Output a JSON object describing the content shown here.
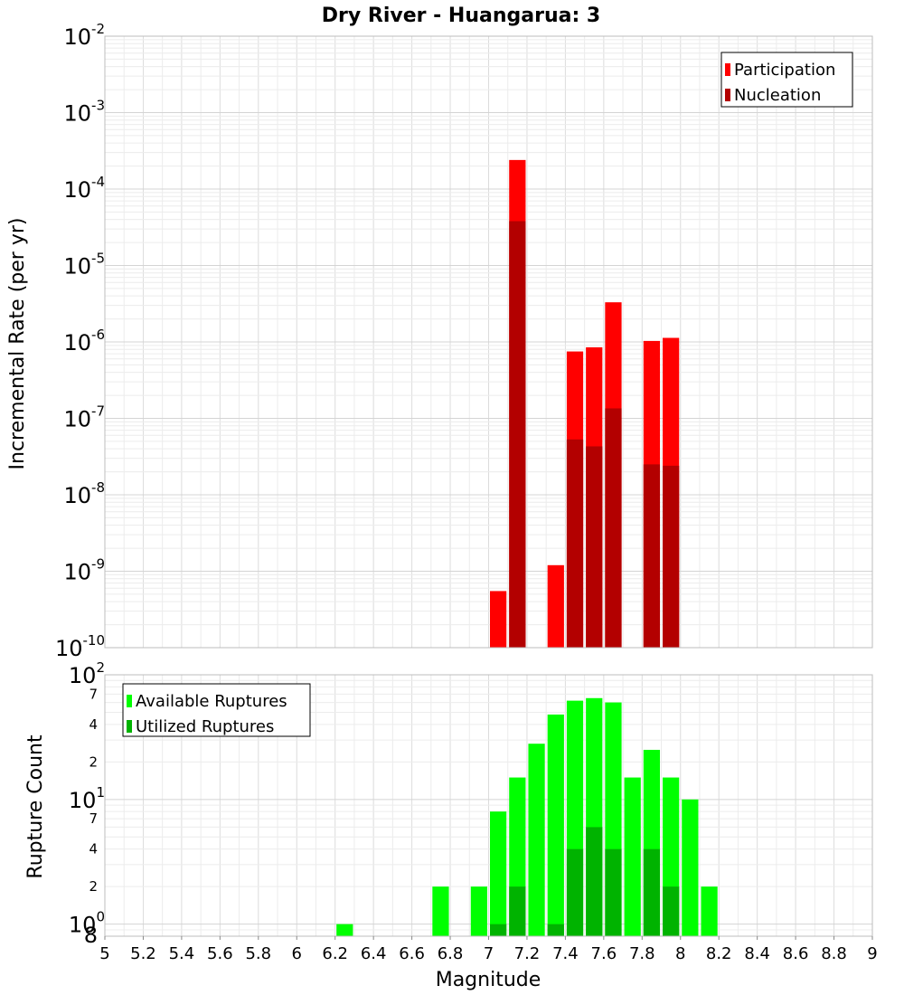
{
  "chart_data": [
    {
      "type": "bar",
      "title": "Dry River - Huangarua: 3",
      "ylabel": "Incremental Rate (per yr)",
      "yscale": "log",
      "ylim": [
        1e-10,
        0.01
      ],
      "y_ticks": [
        {
          "base": "10",
          "exp": "-10"
        },
        {
          "base": "10",
          "exp": "-9"
        },
        {
          "base": "10",
          "exp": "-8"
        },
        {
          "base": "10",
          "exp": "-7"
        },
        {
          "base": "10",
          "exp": "-6"
        },
        {
          "base": "10",
          "exp": "-5"
        },
        {
          "base": "10",
          "exp": "-4"
        },
        {
          "base": "10",
          "exp": "-3"
        },
        {
          "base": "10",
          "exp": "-2"
        }
      ],
      "xlim": [
        5,
        9
      ],
      "bar_width": 0.1,
      "grid": true,
      "legend_position": "top-right",
      "colors": {
        "participation": "#ff0000",
        "nucleation": "#b30000"
      },
      "series": [
        {
          "name": "Participation",
          "color": "#ff0000",
          "x": [
            7.05,
            7.15,
            7.35,
            7.45,
            7.55,
            7.65,
            7.85,
            7.95
          ],
          "values": [
            5.5e-10,
            0.00024,
            1.2e-09,
            7.5e-07,
            8.5e-07,
            3.3e-06,
            1.03e-06,
            1.13e-06
          ]
        },
        {
          "name": "Nucleation",
          "color": "#b30000",
          "x": [
            7.15,
            7.45,
            7.55,
            7.65,
            7.85,
            7.95
          ],
          "values": [
            3.8e-05,
            5.3e-08,
            4.3e-08,
            1.35e-07,
            2.5e-08,
            2.4e-08
          ]
        }
      ]
    },
    {
      "type": "bar",
      "ylabel": "Rupture Count",
      "xlabel": "Magnitude",
      "yscale": "log",
      "ylim": [
        0.8,
        100
      ],
      "y_major_ticks": [
        {
          "base": "10",
          "exp": "0"
        },
        {
          "base": "10",
          "exp": "1"
        },
        {
          "base": "10",
          "exp": "2"
        }
      ],
      "y_minor_ticks": [
        "2",
        "4",
        "7",
        "2",
        "4",
        "7"
      ],
      "y_bottom_label": "8",
      "x_ticks": [
        "5",
        "5.2",
        "5.4",
        "5.6",
        "5.8",
        "6",
        "6.2",
        "6.4",
        "6.6",
        "6.8",
        "7",
        "7.2",
        "7.4",
        "7.6",
        "7.8",
        "8",
        "8.2",
        "8.4",
        "8.6",
        "8.8",
        "9"
      ],
      "xlim": [
        5,
        9
      ],
      "bar_width": 0.1,
      "grid": true,
      "legend_position": "top-left",
      "colors": {
        "available": "#00ff00",
        "utilized": "#00b300"
      },
      "series": [
        {
          "name": "Available Ruptures",
          "color": "#00ff00",
          "x": [
            6.25,
            6.75,
            6.95,
            7.05,
            7.15,
            7.25,
            7.35,
            7.45,
            7.55,
            7.65,
            7.75,
            7.85,
            7.95,
            8.05,
            8.15
          ],
          "values": [
            1,
            2,
            2,
            8,
            15,
            28,
            48,
            62,
            65,
            60,
            15,
            25,
            15,
            10,
            2
          ]
        },
        {
          "name": "Utilized Ruptures",
          "color": "#00b300",
          "x": [
            7.05,
            7.15,
            7.35,
            7.45,
            7.55,
            7.65,
            7.85,
            7.95
          ],
          "values": [
            1,
            2,
            1,
            4,
            6,
            4,
            4,
            2
          ]
        }
      ]
    }
  ]
}
